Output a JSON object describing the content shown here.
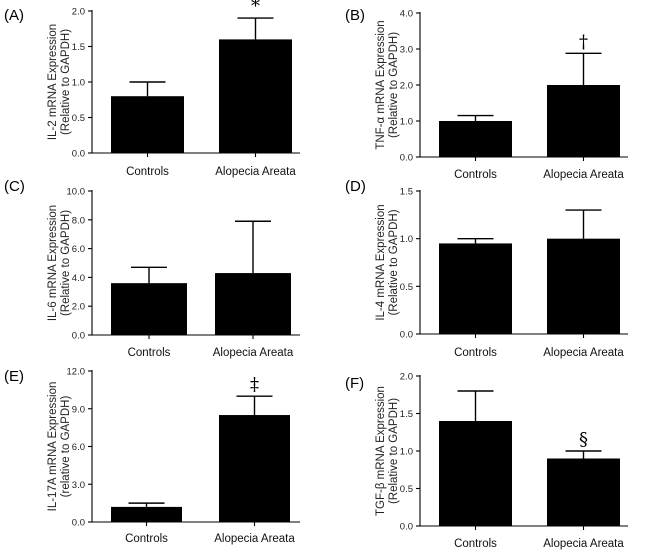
{
  "chart_data": [
    {
      "type": "bar",
      "panel": "(A)",
      "categories": [
        "Controls",
        "Alopecia Areata"
      ],
      "values": [
        0.8,
        1.6
      ],
      "errors": [
        0.2,
        0.3
      ],
      "ylabel": "IL-2 mRNA Expression",
      "ylabel2": "(Relative to GAPDH)",
      "ylim": [
        0,
        2.0
      ],
      "yticks": [
        "0.0",
        "0.5",
        "1.0",
        "1.5",
        "2.0"
      ],
      "annotations": [
        "",
        "*"
      ]
    },
    {
      "type": "bar",
      "panel": "(B)",
      "categories": [
        "Controls",
        "Alopecia Areata"
      ],
      "values": [
        1.0,
        2.0
      ],
      "errors": [
        0.15,
        0.88
      ],
      "ylabel": "TNF-α mRNA Expression",
      "ylabel2": "(Relative to GAPDH)",
      "ylim": [
        0,
        4.0
      ],
      "yticks": [
        "0.0",
        "1.0",
        "2.0",
        "3.0",
        "4.0"
      ],
      "annotations": [
        "",
        "†"
      ]
    },
    {
      "type": "bar",
      "panel": "(C)",
      "categories": [
        "Controls",
        "Alopecia Areata"
      ],
      "values": [
        3.6,
        4.3
      ],
      "errors": [
        1.1,
        3.6
      ],
      "ylabel": "IL-6 mRNA Expression",
      "ylabel2": "(Relative to GAPDH)",
      "ylim": [
        0,
        10.0
      ],
      "yticks": [
        "0.0",
        "2.0",
        "4.0",
        "6.0",
        "8.0",
        "10.0"
      ],
      "annotations": [
        "",
        ""
      ]
    },
    {
      "type": "bar",
      "panel": "(D)",
      "categories": [
        "Controls",
        "Alopecia Areata"
      ],
      "values": [
        0.95,
        1.0
      ],
      "errors": [
        0.05,
        0.3
      ],
      "ylabel": "IL-4 mRNA Expression",
      "ylabel2": "(Relative to GAPDH)",
      "ylim": [
        0,
        1.5
      ],
      "yticks": [
        "0.0",
        "0.5",
        "1.0",
        "1.5"
      ],
      "annotations": [
        "",
        ""
      ]
    },
    {
      "type": "bar",
      "panel": "(E)",
      "categories": [
        "Controls",
        "Alopecia Areata"
      ],
      "values": [
        1.2,
        8.5
      ],
      "errors": [
        0.3,
        1.5
      ],
      "ylabel": "IL-17A mRNA Expression",
      "ylabel2": "(relative to GAPDH)",
      "ylim": [
        0,
        12.0
      ],
      "yticks": [
        "0.0",
        "3.0",
        "6.0",
        "9.0",
        "12.0"
      ],
      "annotations": [
        "",
        "‡"
      ]
    },
    {
      "type": "bar",
      "panel": "(F)",
      "categories": [
        "Controls",
        "Alopecia Areata"
      ],
      "values": [
        1.4,
        0.9
      ],
      "errors": [
        0.4,
        0.1
      ],
      "ylabel": "TGF-β mRNA Expression",
      "ylabel2": "(Relative to GAPDH)",
      "ylim": [
        0,
        2.0
      ],
      "yticks": [
        "0.0",
        "0.5",
        "1.0",
        "1.5",
        "2.0"
      ],
      "annotations": [
        "",
        "§"
      ]
    }
  ]
}
